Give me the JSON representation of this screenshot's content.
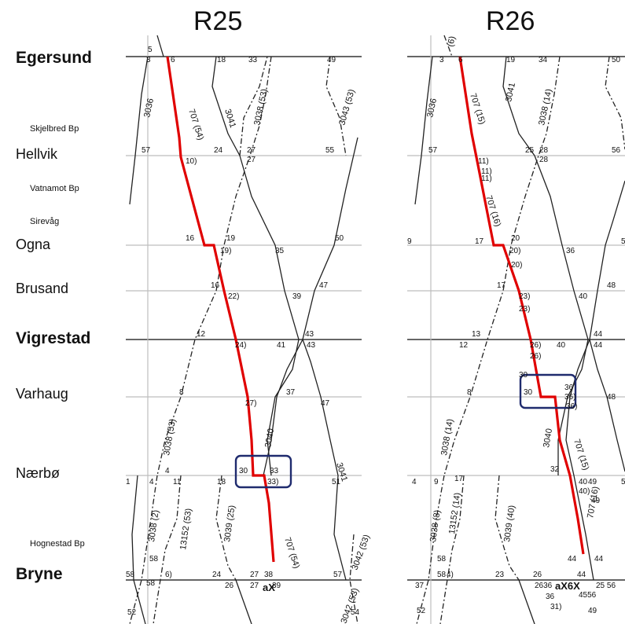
{
  "panels": [
    {
      "title": "R25",
      "times": [
        {
          "v": "5"
        },
        {
          "v": "3"
        },
        {
          "v": "6"
        },
        {
          "v": "18"
        },
        {
          "v": "33"
        },
        {
          "v": "49"
        },
        {
          "v": "57"
        },
        {
          "v": "24"
        },
        {
          "v": "27"
        },
        {
          "v": "27"
        },
        {
          "v": "55"
        },
        {
          "v": "10)"
        },
        {
          "v": "16"
        },
        {
          "v": "19"
        },
        {
          "v": "19)"
        },
        {
          "v": "35"
        },
        {
          "v": "50"
        },
        {
          "v": "16"
        },
        {
          "v": "22)"
        },
        {
          "v": "39"
        },
        {
          "v": "47"
        },
        {
          "v": "12"
        },
        {
          "v": "24)"
        },
        {
          "v": "41"
        },
        {
          "v": "43"
        },
        {
          "v": "43"
        },
        {
          "v": "8"
        },
        {
          "v": "37"
        },
        {
          "v": "27)"
        },
        {
          "v": "47"
        },
        {
          "v": "30"
        },
        {
          "v": "33"
        },
        {
          "v": "33)"
        },
        {
          "v": "51"
        },
        {
          "v": "1"
        },
        {
          "v": "4"
        },
        {
          "v": "4"
        },
        {
          "v": "11"
        },
        {
          "v": "18"
        },
        {
          "v": "58"
        },
        {
          "v": "58"
        },
        {
          "v": "58"
        },
        {
          "v": "6)"
        },
        {
          "v": "24"
        },
        {
          "v": "26"
        },
        {
          "v": "27"
        },
        {
          "v": "27"
        },
        {
          "v": "38"
        },
        {
          "v": "39"
        },
        {
          "v": "57"
        },
        {
          "v": "52"
        },
        {
          "v": "54"
        }
      ],
      "trains": [
        {
          "v": "3036"
        },
        {
          "v": "707 (54)"
        },
        {
          "v": "3041"
        },
        {
          "v": "3038 (53)"
        },
        {
          "v": "3043 (53)"
        },
        {
          "v": "3038 (53)"
        },
        {
          "v": "3040"
        },
        {
          "v": "3041"
        },
        {
          "v": "3038 (2)"
        },
        {
          "v": "13152 (53)"
        },
        {
          "v": "3039 (25)"
        },
        {
          "v": "707 (54)"
        },
        {
          "v": "3042 (53)"
        },
        {
          "v": "3042 (53)"
        }
      ],
      "marker": "aX"
    },
    {
      "title": "R26",
      "times": [
        {
          "v": "3"
        },
        {
          "v": "6"
        },
        {
          "v": "19"
        },
        {
          "v": "34"
        },
        {
          "v": "50"
        },
        {
          "v": "57"
        },
        {
          "v": "11)"
        },
        {
          "v": "11)"
        },
        {
          "v": "25"
        },
        {
          "v": "28"
        },
        {
          "v": "28"
        },
        {
          "v": "56"
        },
        {
          "v": "11)"
        },
        {
          "v": "9"
        },
        {
          "v": "17"
        },
        {
          "v": "20"
        },
        {
          "v": "20)"
        },
        {
          "v": "20)"
        },
        {
          "v": "36"
        },
        {
          "v": "5"
        },
        {
          "v": "17"
        },
        {
          "v": "23)"
        },
        {
          "v": "23)"
        },
        {
          "v": "40"
        },
        {
          "v": "48"
        },
        {
          "v": "12"
        },
        {
          "v": "13"
        },
        {
          "v": "26)"
        },
        {
          "v": "26)"
        },
        {
          "v": "40"
        },
        {
          "v": "44"
        },
        {
          "v": "44"
        },
        {
          "v": "8"
        },
        {
          "v": "30"
        },
        {
          "v": "30"
        },
        {
          "v": "36"
        },
        {
          "v": "36)"
        },
        {
          "v": "36)"
        },
        {
          "v": "48"
        },
        {
          "v": "32"
        },
        {
          "v": "40"
        },
        {
          "v": "40)"
        },
        {
          "v": "49"
        },
        {
          "v": "49"
        },
        {
          "v": "5"
        },
        {
          "v": "4"
        },
        {
          "v": "9"
        },
        {
          "v": "17"
        },
        {
          "v": "58"
        },
        {
          "v": "58"
        },
        {
          "v": "4)"
        },
        {
          "v": "23"
        },
        {
          "v": "26"
        },
        {
          "v": "44"
        },
        {
          "v": "44"
        },
        {
          "v": "44"
        },
        {
          "v": "37"
        },
        {
          "v": "2636"
        },
        {
          "v": "4556"
        },
        {
          "v": "25 56"
        },
        {
          "v": "36"
        },
        {
          "v": "31)"
        },
        {
          "v": "49"
        },
        {
          "v": "52"
        }
      ],
      "trains": [
        {
          "v": "(6)"
        },
        {
          "v": "3036"
        },
        {
          "v": "707 (15)"
        },
        {
          "v": "3041"
        },
        {
          "v": "3038 (14)"
        },
        {
          "v": "707 (16)"
        },
        {
          "v": "3038 (14)"
        },
        {
          "v": "3040"
        },
        {
          "v": "707 (15)"
        },
        {
          "v": "707 (16)"
        },
        {
          "v": "3038 (8)"
        },
        {
          "v": "13152 (14)"
        },
        {
          "v": "3039 (40)"
        }
      ],
      "marker": "aX6X"
    }
  ],
  "stations": [
    {
      "name": "Egersund",
      "weight": "major"
    },
    {
      "name": "Skjelbred Bp",
      "weight": "minor"
    },
    {
      "name": "Hellvik",
      "weight": "normal"
    },
    {
      "name": "Vatnamot Bp",
      "weight": "minor"
    },
    {
      "name": "Sirevåg",
      "weight": "minor"
    },
    {
      "name": "Ogna",
      "weight": "normal"
    },
    {
      "name": "Brusand",
      "weight": "normal"
    },
    {
      "name": "Vigrestad",
      "weight": "major"
    },
    {
      "name": "Varhaug",
      "weight": "normal"
    },
    {
      "name": "Nærbø",
      "weight": "normal"
    },
    {
      "name": "Hognestad Bp",
      "weight": "minor"
    },
    {
      "name": "Bryne",
      "weight": "major"
    }
  ],
  "colors": {
    "highlight_path": "#e00000",
    "conflict_box": "#1f2b6e",
    "line": "#222222",
    "grid": "#bdbdbd"
  }
}
